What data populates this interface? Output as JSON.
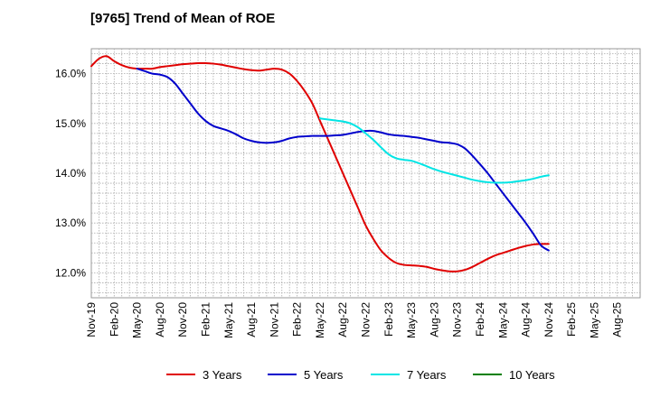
{
  "chart_data": {
    "type": "line",
    "title": "[9765]  Trend of Mean of ROE",
    "y_unit": "%",
    "ylim": [
      11.5,
      16.5
    ],
    "yticks": [
      12.0,
      13.0,
      14.0,
      15.0,
      16.0
    ],
    "ytick_labels": [
      "12.0%",
      "13.0%",
      "14.0%",
      "15.0%",
      "16.0%"
    ],
    "x_start": "2019-11",
    "x_end": "2025-11",
    "xtick_labels": [
      "Nov-19",
      "Feb-20",
      "May-20",
      "Aug-20",
      "Nov-20",
      "Feb-21",
      "May-21",
      "Aug-21",
      "Nov-21",
      "Feb-22",
      "May-22",
      "Aug-22",
      "Nov-22",
      "Feb-23",
      "May-23",
      "Aug-23",
      "Nov-23",
      "Feb-24",
      "May-24",
      "Aug-24",
      "Nov-24",
      "Feb-25",
      "May-25",
      "Aug-25"
    ],
    "grid": true,
    "legend_position": "bottom",
    "series": [
      {
        "name": "3 Years",
        "color": "#e00000",
        "points": [
          [
            "2019-11",
            16.15
          ],
          [
            "2019-12",
            16.3
          ],
          [
            "2020-01",
            16.35
          ],
          [
            "2020-02",
            16.25
          ],
          [
            "2020-03",
            16.17
          ],
          [
            "2020-04",
            16.12
          ],
          [
            "2020-05",
            16.1
          ],
          [
            "2020-06",
            16.1
          ],
          [
            "2020-07",
            16.1
          ],
          [
            "2020-08",
            16.13
          ],
          [
            "2020-09",
            16.15
          ],
          [
            "2020-10",
            16.17
          ],
          [
            "2020-11",
            16.19
          ],
          [
            "2020-12",
            16.2
          ],
          [
            "2021-01",
            16.21
          ],
          [
            "2021-02",
            16.21
          ],
          [
            "2021-03",
            16.2
          ],
          [
            "2021-04",
            16.18
          ],
          [
            "2021-05",
            16.15
          ],
          [
            "2021-06",
            16.12
          ],
          [
            "2021-07",
            16.09
          ],
          [
            "2021-08",
            16.07
          ],
          [
            "2021-09",
            16.06
          ],
          [
            "2021-10",
            16.08
          ],
          [
            "2021-11",
            16.1
          ],
          [
            "2021-12",
            16.08
          ],
          [
            "2022-01",
            16.0
          ],
          [
            "2022-02",
            15.85
          ],
          [
            "2022-03",
            15.65
          ],
          [
            "2022-04",
            15.4
          ],
          [
            "2022-05",
            15.05
          ],
          [
            "2022-06",
            14.7
          ],
          [
            "2022-07",
            14.35
          ],
          [
            "2022-08",
            14.0
          ],
          [
            "2022-09",
            13.65
          ],
          [
            "2022-10",
            13.3
          ],
          [
            "2022-11",
            12.95
          ],
          [
            "2022-12",
            12.68
          ],
          [
            "2023-01",
            12.45
          ],
          [
            "2023-02",
            12.3
          ],
          [
            "2023-03",
            12.2
          ],
          [
            "2023-04",
            12.16
          ],
          [
            "2023-05",
            12.15
          ],
          [
            "2023-06",
            12.14
          ],
          [
            "2023-07",
            12.12
          ],
          [
            "2023-08",
            12.08
          ],
          [
            "2023-09",
            12.05
          ],
          [
            "2023-10",
            12.03
          ],
          [
            "2023-11",
            12.03
          ],
          [
            "2023-12",
            12.06
          ],
          [
            "2024-01",
            12.12
          ],
          [
            "2024-02",
            12.2
          ],
          [
            "2024-03",
            12.28
          ],
          [
            "2024-04",
            12.35
          ],
          [
            "2024-05",
            12.4
          ],
          [
            "2024-06",
            12.45
          ],
          [
            "2024-07",
            12.5
          ],
          [
            "2024-08",
            12.54
          ],
          [
            "2024-09",
            12.57
          ],
          [
            "2024-10",
            12.58
          ],
          [
            "2024-11",
            12.58
          ]
        ]
      },
      {
        "name": "5 Years",
        "color": "#0000cc",
        "points": [
          [
            "2020-05",
            16.1
          ],
          [
            "2020-06",
            16.05
          ],
          [
            "2020-07",
            16.0
          ],
          [
            "2020-08",
            15.98
          ],
          [
            "2020-09",
            15.93
          ],
          [
            "2020-10",
            15.8
          ],
          [
            "2020-11",
            15.6
          ],
          [
            "2020-12",
            15.4
          ],
          [
            "2021-01",
            15.2
          ],
          [
            "2021-02",
            15.05
          ],
          [
            "2021-03",
            14.95
          ],
          [
            "2021-04",
            14.9
          ],
          [
            "2021-05",
            14.85
          ],
          [
            "2021-06",
            14.78
          ],
          [
            "2021-07",
            14.7
          ],
          [
            "2021-08",
            14.65
          ],
          [
            "2021-09",
            14.62
          ],
          [
            "2021-10",
            14.61
          ],
          [
            "2021-11",
            14.62
          ],
          [
            "2021-12",
            14.65
          ],
          [
            "2022-01",
            14.7
          ],
          [
            "2022-02",
            14.73
          ],
          [
            "2022-03",
            14.74
          ],
          [
            "2022-04",
            14.75
          ],
          [
            "2022-05",
            14.75
          ],
          [
            "2022-06",
            14.75
          ],
          [
            "2022-07",
            14.76
          ],
          [
            "2022-08",
            14.77
          ],
          [
            "2022-09",
            14.8
          ],
          [
            "2022-10",
            14.83
          ],
          [
            "2022-11",
            14.85
          ],
          [
            "2022-12",
            14.85
          ],
          [
            "2023-01",
            14.82
          ],
          [
            "2023-02",
            14.78
          ],
          [
            "2023-03",
            14.76
          ],
          [
            "2023-04",
            14.75
          ],
          [
            "2023-05",
            14.73
          ],
          [
            "2023-06",
            14.71
          ],
          [
            "2023-07",
            14.68
          ],
          [
            "2023-08",
            14.65
          ],
          [
            "2023-09",
            14.62
          ],
          [
            "2023-10",
            14.61
          ],
          [
            "2023-11",
            14.58
          ],
          [
            "2023-12",
            14.5
          ],
          [
            "2024-01",
            14.35
          ],
          [
            "2024-02",
            14.18
          ],
          [
            "2024-03",
            14.0
          ],
          [
            "2024-04",
            13.8
          ],
          [
            "2024-05",
            13.6
          ],
          [
            "2024-06",
            13.4
          ],
          [
            "2024-07",
            13.2
          ],
          [
            "2024-08",
            13.0
          ],
          [
            "2024-09",
            12.78
          ],
          [
            "2024-10",
            12.55
          ],
          [
            "2024-11",
            12.45
          ]
        ]
      },
      {
        "name": "7 Years",
        "color": "#00e5e5",
        "points": [
          [
            "2022-05",
            15.1
          ],
          [
            "2022-06",
            15.08
          ],
          [
            "2022-07",
            15.06
          ],
          [
            "2022-08",
            15.04
          ],
          [
            "2022-09",
            15.0
          ],
          [
            "2022-10",
            14.92
          ],
          [
            "2022-11",
            14.8
          ],
          [
            "2022-12",
            14.67
          ],
          [
            "2023-01",
            14.52
          ],
          [
            "2023-02",
            14.38
          ],
          [
            "2023-03",
            14.3
          ],
          [
            "2023-04",
            14.27
          ],
          [
            "2023-05",
            14.25
          ],
          [
            "2023-06",
            14.2
          ],
          [
            "2023-07",
            14.14
          ],
          [
            "2023-08",
            14.08
          ],
          [
            "2023-09",
            14.03
          ],
          [
            "2023-10",
            13.99
          ],
          [
            "2023-11",
            13.95
          ],
          [
            "2023-12",
            13.91
          ],
          [
            "2024-01",
            13.87
          ],
          [
            "2024-02",
            13.84
          ],
          [
            "2024-03",
            13.82
          ],
          [
            "2024-04",
            13.81
          ],
          [
            "2024-05",
            13.81
          ],
          [
            "2024-06",
            13.82
          ],
          [
            "2024-07",
            13.84
          ],
          [
            "2024-08",
            13.86
          ],
          [
            "2024-09",
            13.89
          ],
          [
            "2024-10",
            13.93
          ],
          [
            "2024-11",
            13.96
          ]
        ]
      },
      {
        "name": "10 Years",
        "color": "#008000",
        "points": []
      }
    ]
  }
}
